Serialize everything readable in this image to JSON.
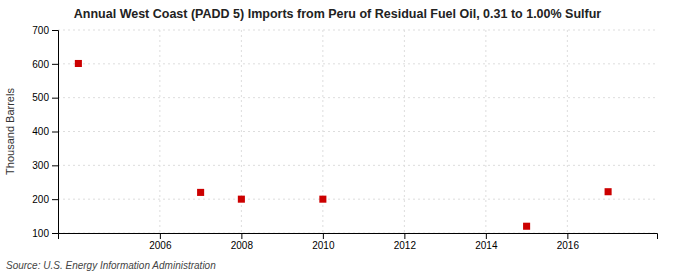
{
  "chart_data": {
    "type": "scatter",
    "title": "Annual West Coast (PADD 5) Imports from Peru of Residual Fuel Oil, 0.31 to 1.00% Sulfur",
    "ylabel": "Thousand Barrels",
    "source": "Source: U.S. Energy Information Administration",
    "x": [
      2004,
      2007,
      2008,
      2010,
      2015,
      2017
    ],
    "values": [
      601,
      220,
      200,
      200,
      120,
      222
    ],
    "color": "#cc0000",
    "marker": "square",
    "xlim": [
      2003.5,
      2018.2
    ],
    "ylim": [
      100,
      700
    ],
    "xticks": [
      2006,
      2008,
      2010,
      2012,
      2014,
      2016
    ],
    "yticks": [
      100,
      200,
      300,
      400,
      500,
      600,
      700
    ],
    "grid": true
  }
}
